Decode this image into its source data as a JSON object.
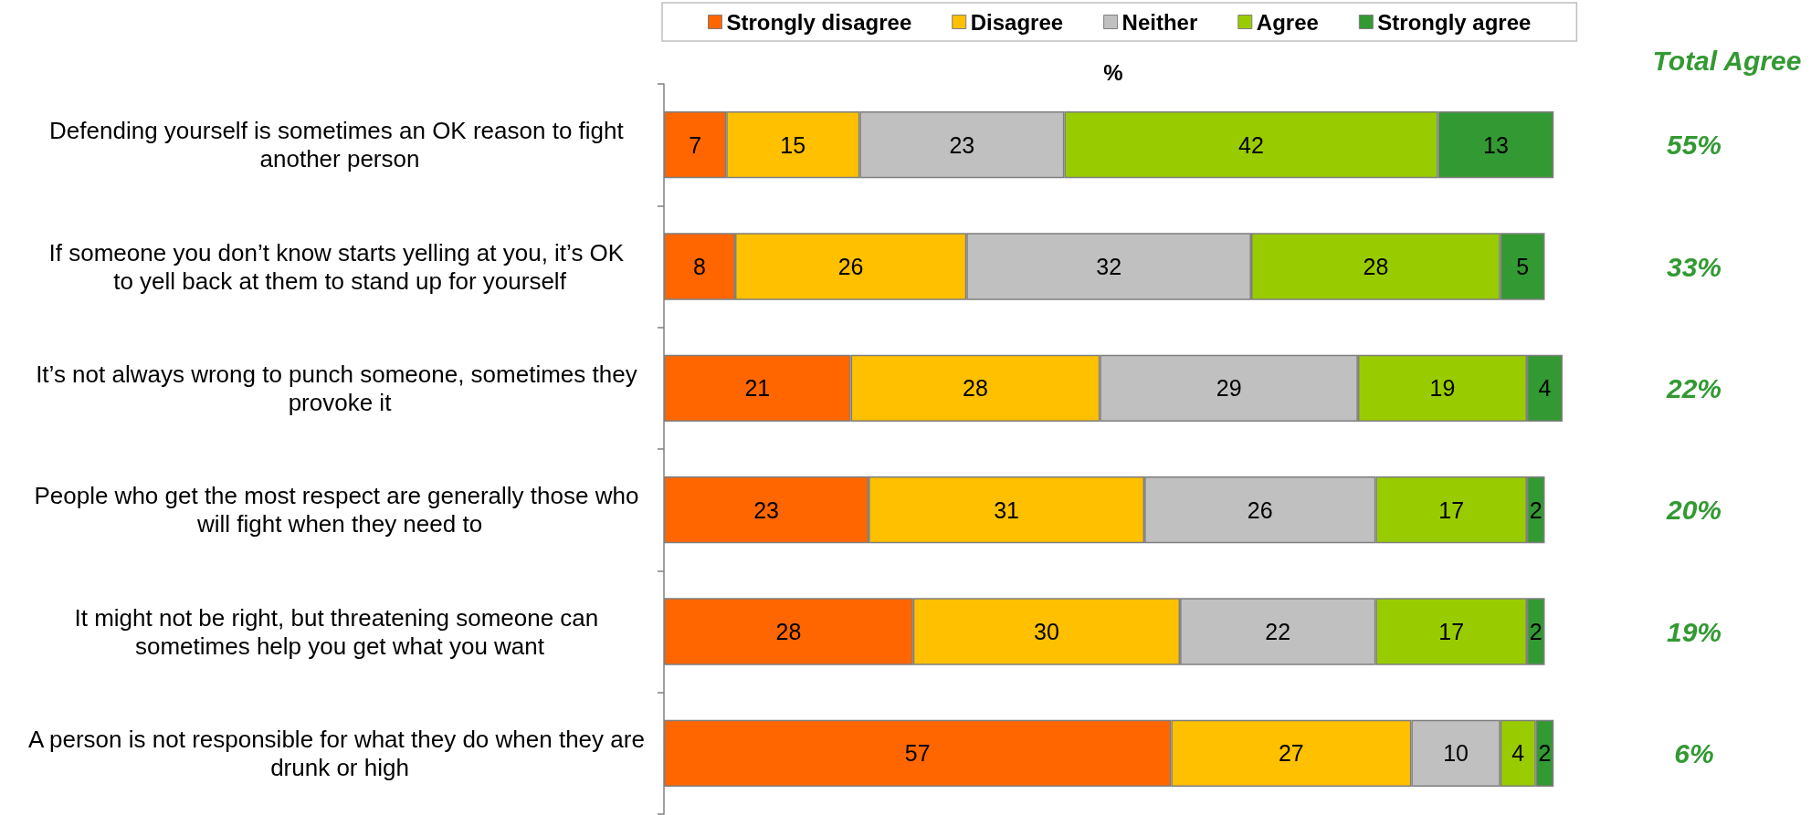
{
  "chart_data": {
    "type": "bar",
    "orientation": "horizontal",
    "stacked": true,
    "data_labels": true,
    "legend": "top",
    "tick_labels": "y",
    "xlabel": "%",
    "categories": [
      "Defending yourself is sometimes an OK reason to fight another person",
      "If someone you don’t know starts yelling at you, it’s OK to yell back at them to stand up for yourself",
      "It’s not always wrong to punch someone, sometimes they provoke it",
      "People who get the most respect are generally those who will fight when they need to",
      "It might not be right, but threatening someone can sometimes help you get what you want",
      "A person is not responsible for what they do when they are drunk or high"
    ],
    "series": [
      {
        "name": "Strongly disagree",
        "color": "#ff6600",
        "values": [
          7,
          8,
          21,
          23,
          28,
          57
        ]
      },
      {
        "name": "Disagree",
        "color": "#ffc000",
        "values": [
          15,
          26,
          28,
          31,
          30,
          27
        ]
      },
      {
        "name": "Neither",
        "color": "#c0c0c0",
        "values": [
          23,
          32,
          29,
          26,
          22,
          10
        ]
      },
      {
        "name": "Agree",
        "color": "#99cc00",
        "values": [
          42,
          28,
          19,
          17,
          17,
          4
        ]
      },
      {
        "name": "Strongly agree",
        "color": "#339933",
        "values": [
          13,
          5,
          4,
          2,
          2,
          2
        ]
      }
    ],
    "annotations": [
      "Total Agree",
      "55%",
      "33%",
      "22%",
      "20%",
      "19%",
      "6%"
    ]
  }
}
